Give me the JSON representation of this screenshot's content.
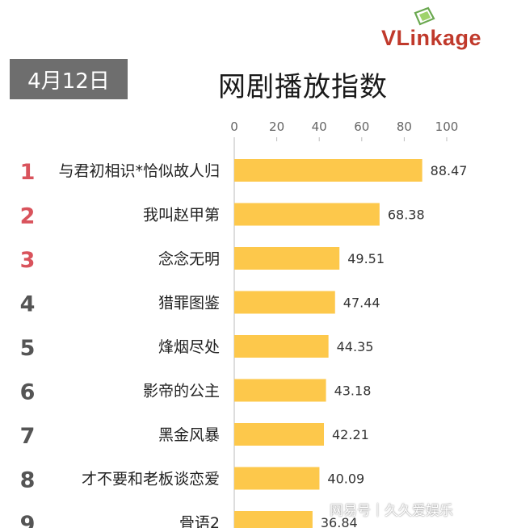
{
  "header": {
    "date": "4月12日",
    "title": "网剧播放指数",
    "logo": "VLinkage"
  },
  "colors": {
    "bar": "#fdc84b",
    "rank_top": "#d9535c",
    "rank_other": "#555555",
    "axis": "#bbbbbb"
  },
  "watermark": "网易号｜久久爱娱乐",
  "chart_data": {
    "type": "bar",
    "orientation": "horizontal",
    "title": "网剧播放指数",
    "xlim": [
      0,
      100
    ],
    "ticks": [
      0,
      20,
      40,
      60,
      80,
      100
    ],
    "grid": false,
    "ranks": [
      "1",
      "2",
      "3",
      "4",
      "5",
      "6",
      "7",
      "8",
      "9"
    ],
    "categories": [
      "与君初相识*恰似故人归",
      "我叫赵甲第",
      "念念无明",
      "猎罪图鉴",
      "烽烟尽处",
      "影帝的公主",
      "黑金风暴",
      "才不要和老板谈恋爱",
      "骨语2"
    ],
    "values": [
      88.47,
      68.38,
      49.51,
      47.44,
      44.35,
      43.18,
      42.21,
      40.09,
      36.84
    ],
    "value_labels": [
      "88.47",
      "68.38",
      "49.51",
      "47.44",
      "44.35",
      "43.18",
      "42.21",
      "40.09",
      "36.84"
    ]
  }
}
